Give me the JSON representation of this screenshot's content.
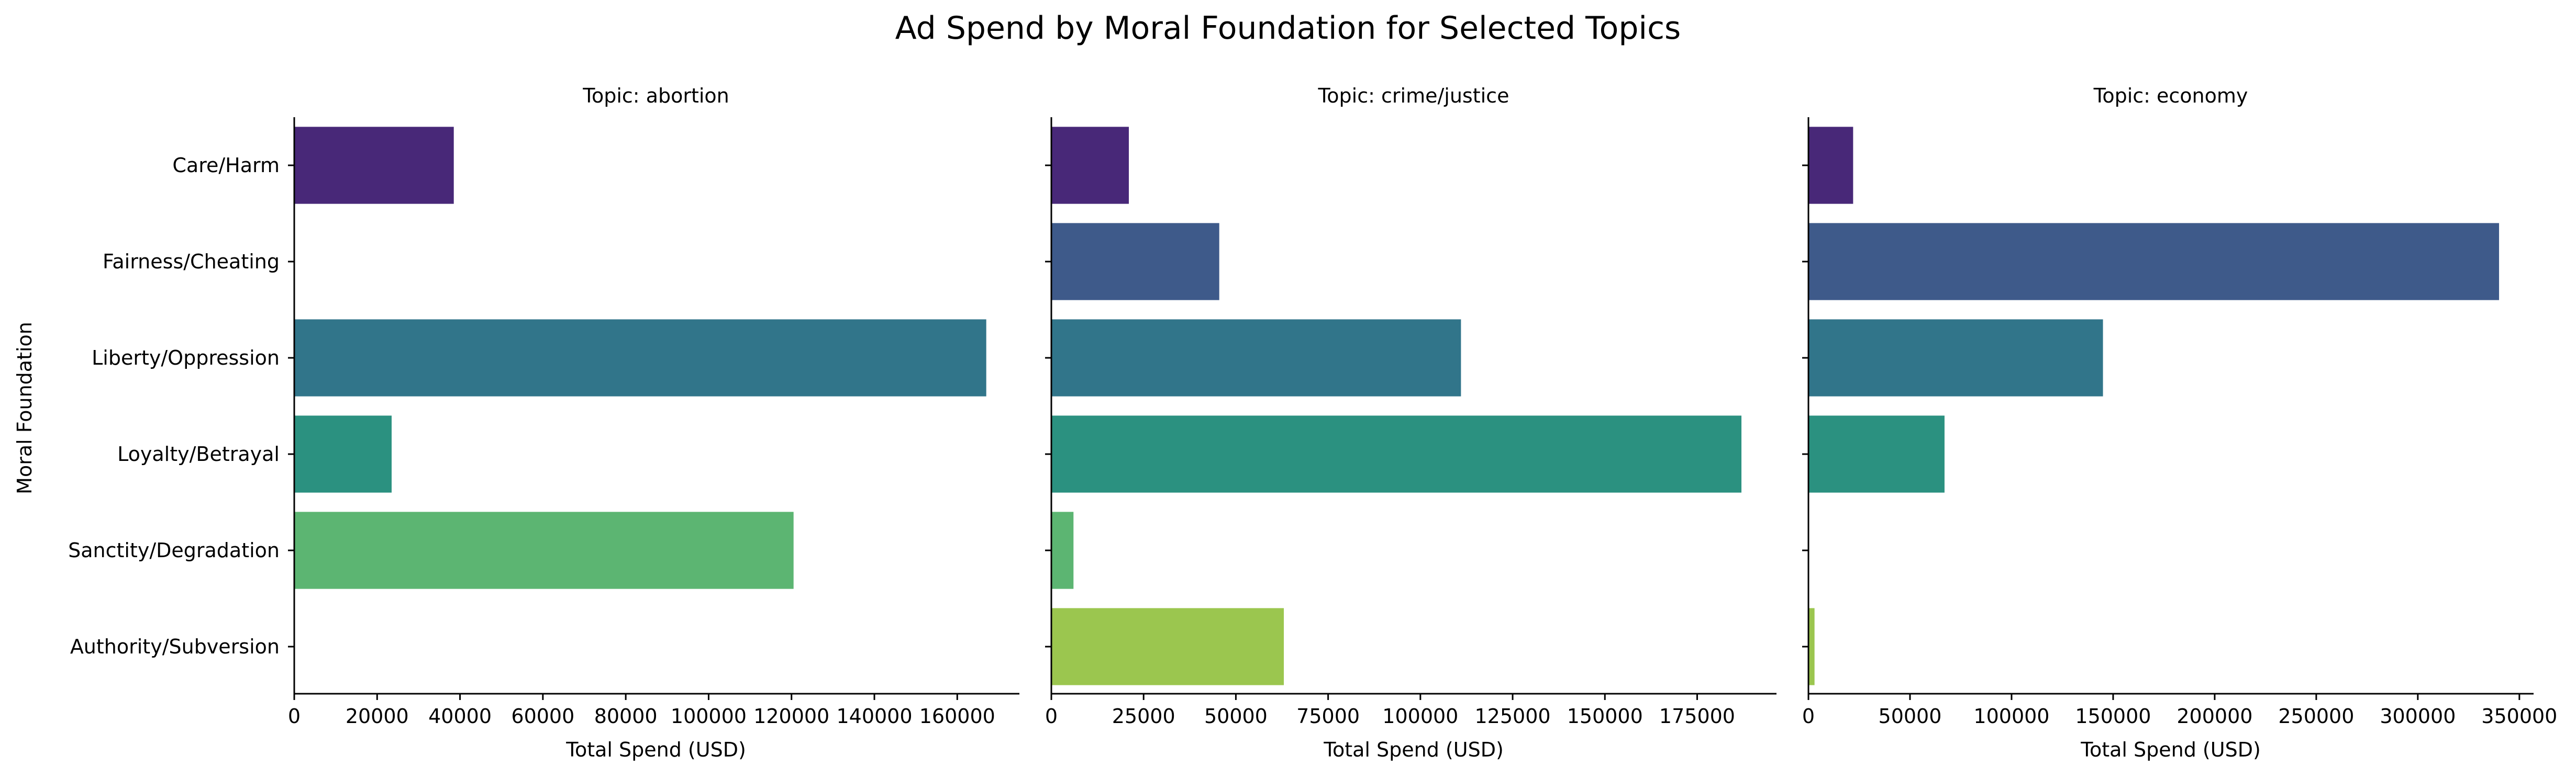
{
  "chart_data": {
    "title": "Ad Spend by Moral Foundation for Selected Topics",
    "type": "bar",
    "orientation": "horizontal",
    "ylabel": "Moral Foundation",
    "categories": [
      "Care/Harm",
      "Fairness/Cheating",
      "Liberty/Oppression",
      "Loyalty/Betrayal",
      "Sanctity/Degradation",
      "Authority/Subversion"
    ],
    "colors": [
      "#482878",
      "#3e5a8a",
      "#31758a",
      "#2b9180",
      "#5cb572",
      "#9bc64f"
    ],
    "panels": [
      {
        "title": "Topic: abortion",
        "xlabel": "Total Spend (USD)",
        "xlim": [
          0,
          175000
        ],
        "ticks": [
          0,
          20000,
          40000,
          60000,
          80000,
          100000,
          120000,
          140000,
          160000
        ],
        "tick_labels": [
          "0",
          "20000",
          "40000",
          "60000",
          "80000",
          "100000",
          "120000",
          "140000",
          "160000"
        ],
        "values": [
          38500,
          null,
          167000,
          23500,
          120500,
          null
        ]
      },
      {
        "title": "Topic: crime/justice",
        "xlabel": "Total Spend (USD)",
        "xlim": [
          0,
          196500
        ],
        "ticks": [
          0,
          25000,
          50000,
          75000,
          100000,
          125000,
          150000,
          175000
        ],
        "tick_labels": [
          "0",
          "25000",
          "50000",
          "75000",
          "100000",
          "125000",
          "150000",
          "175000"
        ],
        "values": [
          21000,
          45500,
          111000,
          187000,
          6000,
          63000
        ]
      },
      {
        "title": "Topic: economy",
        "xlabel": "Total Spend (USD)",
        "xlim": [
          0,
          357000
        ],
        "ticks": [
          0,
          50000,
          100000,
          150000,
          200000,
          250000,
          300000,
          350000
        ],
        "tick_labels": [
          "0",
          "50000",
          "100000",
          "150000",
          "200000",
          "250000",
          "300000",
          "350000"
        ],
        "values": [
          22000,
          340000,
          145000,
          67000,
          null,
          3000
        ]
      }
    ]
  }
}
